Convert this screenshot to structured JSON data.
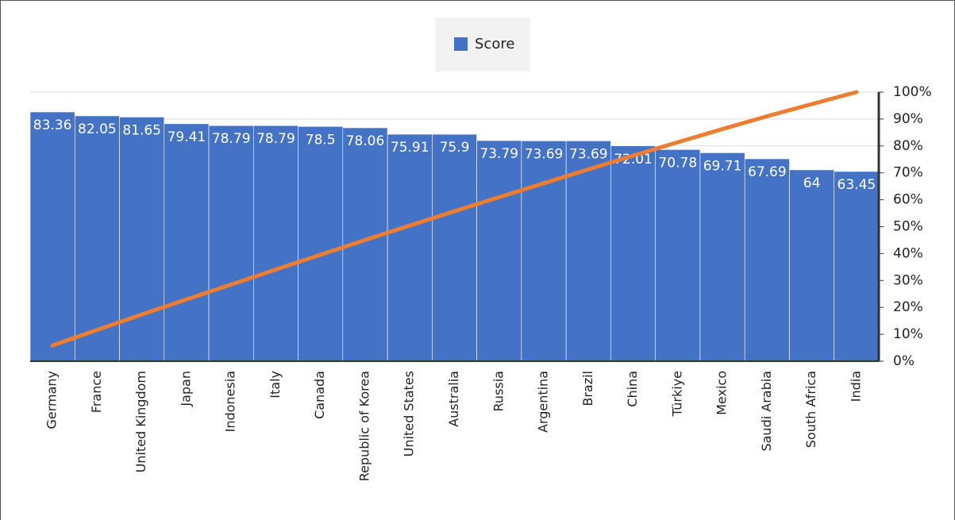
{
  "chart_data": {
    "type": "pareto",
    "categories": [
      "Germany",
      "France",
      "United Kingdom",
      "Japan",
      "Indonesia",
      "Italy",
      "Canada",
      "Republic of Korea",
      "United States",
      "Australia",
      "Russia",
      "Argentina",
      "Brazil",
      "China",
      "Türkiye",
      "Mexico",
      "Saudi Arabia",
      "South Africa",
      "India"
    ],
    "series": [
      {
        "name": "Score",
        "color": "#4472c4",
        "values": [
          83.36,
          82.05,
          81.65,
          79.41,
          78.79,
          78.79,
          78.5,
          78.06,
          75.91,
          75.9,
          73.79,
          73.69,
          73.69,
          72.01,
          70.78,
          69.71,
          67.69,
          64,
          63.45
        ]
      },
      {
        "color": "#ed7d31",
        "axis": "y2",
        "values": [
          5.87,
          11.64,
          17.38,
          22.97,
          28.51,
          34.06,
          39.58,
          45.07,
          50.42,
          55.76,
          60.95,
          66.13,
          71.32,
          76.39,
          81.37,
          86.27,
          91.03,
          95.54,
          100
        ]
      }
    ],
    "ylim": [
      0,
      90
    ],
    "y2lim": [
      0,
      100
    ],
    "y2ticks": [
      {
        "value": 0,
        "label": "0%"
      },
      {
        "value": 10,
        "label": "10%"
      },
      {
        "value": 20,
        "label": "20%"
      },
      {
        "value": 30,
        "label": "30%"
      },
      {
        "value": 40,
        "label": "40%"
      },
      {
        "value": 50,
        "label": "50%"
      },
      {
        "value": 60,
        "label": "60%"
      },
      {
        "value": 70,
        "label": "70%"
      },
      {
        "value": 80,
        "label": "80%"
      },
      {
        "value": 90,
        "label": "90%"
      },
      {
        "value": 100,
        "label": "100%"
      }
    ],
    "grid": true,
    "legend": "top"
  }
}
